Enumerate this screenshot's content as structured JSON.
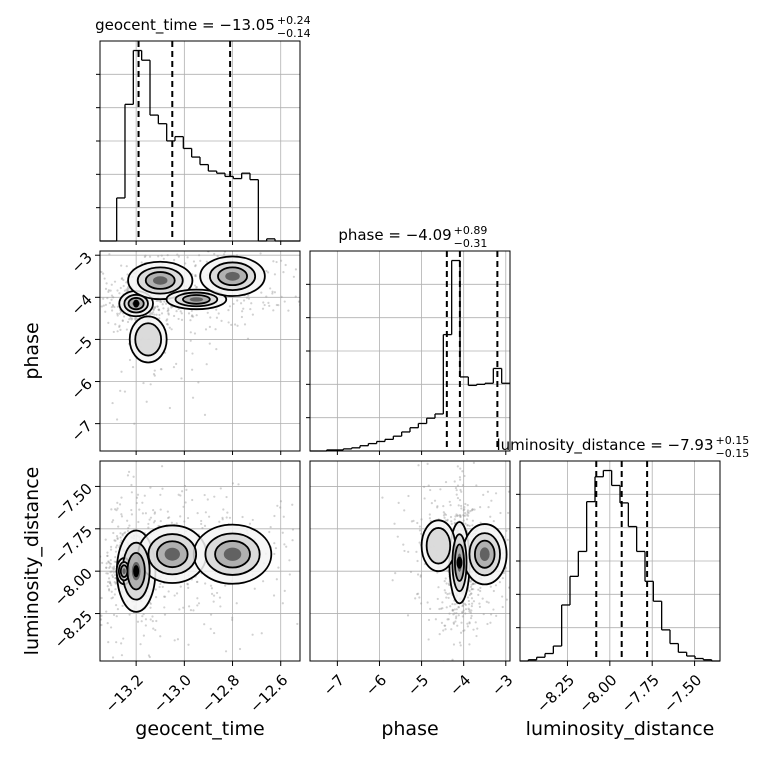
{
  "chart_data": {
    "type": "corner",
    "grid": true,
    "parameters": [
      {
        "name": "geocent_time",
        "xlabel": "geocent_time",
        "ylabel": "",
        "title_prefix": "geocent_time = ",
        "median_text": "−13.05",
        "plus_text": "+0.24",
        "minus_text": "−0.14",
        "median": -13.05,
        "plus": 0.24,
        "minus": 0.14,
        "range": [
          -13.35,
          -12.52
        ],
        "ticks": [
          -13.2,
          -13.0,
          -12.8,
          -12.6
        ],
        "tick_labels": [
          "−13.2",
          "−13.0",
          "−12.8",
          "−12.6"
        ],
        "quantile_lines": [
          -13.19,
          -13.05,
          -12.81
        ],
        "hist": {
          "bin_edges": [
            -13.35,
            -13.3154,
            -13.2808,
            -13.2463,
            -13.2117,
            -13.1771,
            -13.1425,
            -13.1079,
            -13.0733,
            -13.0388,
            -13.0042,
            -12.9696,
            -12.935,
            -12.9004,
            -12.8658,
            -12.8313,
            -12.7967,
            -12.7621,
            -12.7275,
            -12.6929,
            -12.6583,
            -12.6238,
            -12.5892,
            -12.5546,
            -12.52
          ],
          "counts": [
            0,
            0,
            40,
            127,
            177,
            168,
            117,
            109,
            93,
            97,
            86,
            78,
            71,
            65,
            63,
            60,
            58,
            63,
            57,
            0,
            2,
            0,
            0,
            0
          ]
        }
      },
      {
        "name": "phase",
        "xlabel": "phase",
        "ylabel": "phase",
        "title_prefix": "phase = ",
        "median_text": "−4.09",
        "plus_text": "+0.89",
        "minus_text": "−0.31",
        "median": -4.09,
        "plus": 0.89,
        "minus": 0.31,
        "range": [
          -7.65,
          -2.9
        ],
        "ticks": [
          -7,
          -6,
          -5,
          -4,
          -3
        ],
        "tick_labels": [
          "−7",
          "−6",
          "−5",
          "−4",
          "−3"
        ],
        "quantile_lines": [
          -4.4,
          -4.09,
          -3.2
        ],
        "hist": {
          "bin_edges": [
            -7.65,
            -7.4521,
            -7.2542,
            -7.0563,
            -6.8583,
            -6.6604,
            -6.4625,
            -6.2646,
            -6.0667,
            -5.8688,
            -5.6708,
            -5.4729,
            -5.275,
            -5.0771,
            -4.8792,
            -4.6813,
            -4.4833,
            -4.2854,
            -4.0875,
            -3.8896,
            -3.6917,
            -3.4938,
            -3.2958,
            -3.0979,
            -2.9
          ],
          "counts": [
            0,
            0,
            1,
            1,
            2,
            3,
            5,
            7,
            9,
            11,
            14,
            18,
            22,
            26,
            31,
            35,
            110,
            180,
            70,
            62,
            63,
            64,
            78,
            64
          ]
        }
      },
      {
        "name": "luminosity_distance",
        "xlabel": "luminosity_distance",
        "ylabel": "luminosity_distance",
        "title_prefix": "luminosity_distance = ",
        "median_text": "−7.93",
        "plus_text": "+0.15",
        "minus_text": "−0.15",
        "median": -7.93,
        "plus": 0.15,
        "minus": 0.15,
        "range": [
          -8.53,
          -7.35
        ],
        "ticks": [
          -8.25,
          -8.0,
          -7.75,
          -7.5
        ],
        "tick_labels": [
          "−8.25",
          "−8.00",
          "−7.75",
          "−7.50"
        ],
        "quantile_lines": [
          -8.08,
          -7.93,
          -7.78
        ],
        "hist": {
          "bin_edges": [
            -8.53,
            -8.4808,
            -8.4317,
            -8.3825,
            -8.3333,
            -8.2842,
            -8.235,
            -8.1858,
            -8.1367,
            -8.0875,
            -8.0383,
            -7.9892,
            -7.94,
            -7.8908,
            -7.8417,
            -7.7925,
            -7.7433,
            -7.6942,
            -7.645,
            -7.5958,
            -7.5467,
            -7.4975,
            -7.4483,
            -7.3992,
            -7.35
          ],
          "counts": [
            0,
            1,
            3,
            6,
            12,
            45,
            68,
            88,
            128,
            148,
            153,
            141,
            127,
            108,
            88,
            64,
            48,
            25,
            14,
            7,
            4,
            2,
            1,
            0
          ]
        }
      }
    ],
    "pairs": [
      {
        "x": "geocent_time",
        "y": "phase",
        "density_modes": [
          {
            "x": -13.2,
            "y": -4.15,
            "sx": 0.035,
            "sy": 0.15,
            "w": 1.0
          },
          {
            "x": -13.1,
            "y": -3.6,
            "sx": 0.09,
            "sy": 0.3,
            "w": 0.55
          },
          {
            "x": -12.95,
            "y": -4.05,
            "sx": 0.08,
            "sy": 0.15,
            "w": 0.6
          },
          {
            "x": -12.8,
            "y": -3.5,
            "sx": 0.1,
            "sy": 0.35,
            "w": 0.45
          },
          {
            "x": -13.15,
            "y": -5.0,
            "sx": 0.07,
            "sy": 0.5,
            "w": 0.3
          }
        ]
      },
      {
        "x": "geocent_time",
        "y": "luminosity_distance",
        "density_modes": [
          {
            "x": -13.2,
            "y": -8.0,
            "sx": 0.04,
            "sy": 0.12,
            "w": 1.0
          },
          {
            "x": -13.25,
            "y": -8.0,
            "sx": 0.02,
            "sy": 0.05,
            "w": 0.6
          },
          {
            "x": -13.05,
            "y": -7.9,
            "sx": 0.1,
            "sy": 0.12,
            "w": 0.5
          },
          {
            "x": -12.8,
            "y": -7.9,
            "sx": 0.12,
            "sy": 0.13,
            "w": 0.45
          }
        ]
      },
      {
        "x": "phase",
        "y": "luminosity_distance",
        "density_modes": [
          {
            "x": -4.1,
            "y": -7.95,
            "sx": 0.12,
            "sy": 0.12,
            "w": 1.0
          },
          {
            "x": -3.5,
            "y": -7.9,
            "sx": 0.35,
            "sy": 0.12,
            "w": 0.55
          },
          {
            "x": -4.6,
            "y": -7.85,
            "sx": 0.4,
            "sy": 0.15,
            "w": 0.25
          }
        ]
      }
    ]
  }
}
